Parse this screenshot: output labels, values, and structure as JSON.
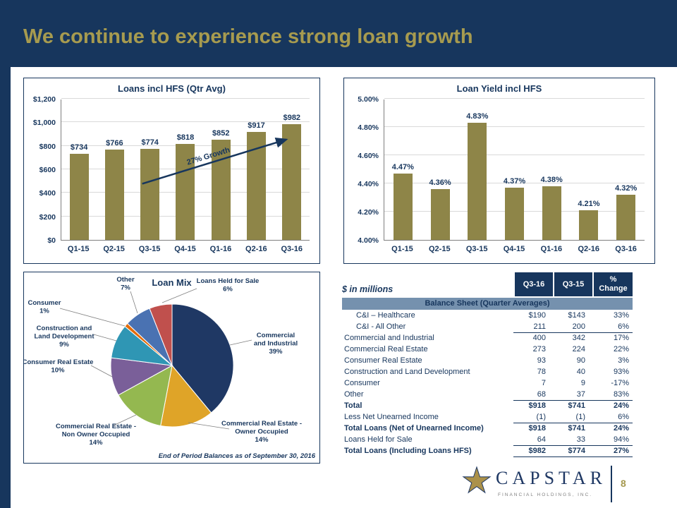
{
  "slide": {
    "title": "We continue to experience strong loan growth",
    "page_number": "8"
  },
  "logo": {
    "name": "CAPSTAR",
    "subtitle": "FINANCIAL HOLDINGS, INC."
  },
  "colors": {
    "navy": "#17365d",
    "title_gold": "#a79b4f",
    "bar_olive": "#8e8548",
    "section_row_bg": "#7591ae",
    "page_number_gold": "#a5984e"
  },
  "chart_data": [
    {
      "type": "bar",
      "title": "Loans incl HFS (Qtr Avg)",
      "categories": [
        "Q1-15",
        "Q2-15",
        "Q3-15",
        "Q4-15",
        "Q1-16",
        "Q2-16",
        "Q3-16"
      ],
      "values": [
        734,
        766,
        774,
        818,
        852,
        917,
        982
      ],
      "labels": [
        "$734",
        "$766",
        "$774",
        "$818",
        "$852",
        "$917",
        "$982"
      ],
      "ylim": [
        0,
        1200
      ],
      "yticks": [
        "$0",
        "$200",
        "$400",
        "$600",
        "$800",
        "$1,000",
        "$1,200"
      ],
      "annotation": "27% Growth",
      "bar_color": "#8e8548",
      "grid": true,
      "legend": "none"
    },
    {
      "type": "bar",
      "title": "Loan Yield incl HFS",
      "categories": [
        "Q1-15",
        "Q2-15",
        "Q3-15",
        "Q4-15",
        "Q1-16",
        "Q2-16",
        "Q3-16"
      ],
      "values": [
        4.47,
        4.36,
        4.83,
        4.37,
        4.38,
        4.21,
        4.32
      ],
      "labels": [
        "4.47%",
        "4.36%",
        "4.83%",
        "4.37%",
        "4.38%",
        "4.21%",
        "4.32%"
      ],
      "ylim": [
        4.0,
        5.0
      ],
      "yticks": [
        "4.00%",
        "4.20%",
        "4.40%",
        "4.60%",
        "4.80%",
        "5.00%"
      ],
      "bar_color": "#8e8548",
      "grid": true,
      "legend": "none"
    },
    {
      "type": "pie",
      "title": "Loan Mix",
      "footnote": "End of Period Balances as of  September 30, 2016",
      "slices": [
        {
          "name": "Commercial and Industrial",
          "pct": 39,
          "pct_label": "39%",
          "color": "#1f3864",
          "label_lines": [
            "Commercial",
            "and Industrial"
          ]
        },
        {
          "name": "Commercial Real Estate - Owner Occupied",
          "pct": 14,
          "pct_label": "14%",
          "color": "#dfa428",
          "label_lines": [
            "Commercial Real Estate -",
            "Owner Occupied"
          ]
        },
        {
          "name": "Commercial Real Estate - Non Owner Occupied",
          "pct": 14,
          "pct_label": "14%",
          "color": "#94b850",
          "label_lines": [
            "Commercial Real Estate -",
            "Non Owner Occupied"
          ]
        },
        {
          "name": "Consumer Real Estate",
          "pct": 10,
          "pct_label": "10%",
          "color": "#7a5f99",
          "label_lines": [
            "Consumer Real Estate"
          ]
        },
        {
          "name": "Construction and Land Development",
          "pct": 9,
          "pct_label": "9%",
          "color": "#2f96b4",
          "label_lines": [
            "Construction and",
            "Land Development"
          ]
        },
        {
          "name": "Consumer",
          "pct": 1,
          "pct_label": "1%",
          "color": "#e36c0a",
          "label_lines": [
            "Consumer"
          ]
        },
        {
          "name": "Other",
          "pct": 7,
          "pct_label": "7%",
          "color": "#4a72b2",
          "label_lines": [
            "Other"
          ]
        },
        {
          "name": "Loans Held for Sale",
          "pct": 6,
          "pct_label": "6%",
          "color": "#c0504d",
          "label_lines": [
            "Loans Held for Sale"
          ]
        }
      ]
    },
    {
      "type": "table",
      "unit_label": "$ in millions",
      "columns": [
        "Q3-16",
        "Q3-15",
        "%\nChange"
      ],
      "section_header": "Balance Sheet (Quarter Averages)",
      "rows": [
        {
          "label": "C&I – Healthcare",
          "values": [
            "$190",
            "$143",
            "33%"
          ],
          "indent": true
        },
        {
          "label": "C&I - All Other",
          "values": [
            "211",
            "200",
            "6%"
          ],
          "indent": true,
          "rule_below": true
        },
        {
          "label": "Commercial and Industrial",
          "values": [
            "400",
            "342",
            "17%"
          ]
        },
        {
          "label": "Commercial Real Estate",
          "values": [
            "273",
            "224",
            "22%"
          ]
        },
        {
          "label": "Consumer Real Estate",
          "values": [
            "93",
            "90",
            "3%"
          ]
        },
        {
          "label": "Construction and Land Development",
          "values": [
            "78",
            "40",
            "93%"
          ]
        },
        {
          "label": "Consumer",
          "values": [
            "7",
            "9",
            "-17%"
          ]
        },
        {
          "label": "Other",
          "values": [
            "68",
            "37",
            "83%"
          ],
          "rule_below": true
        },
        {
          "label": "Total",
          "values": [
            "$918",
            "$741",
            "24%"
          ],
          "bold": true
        },
        {
          "label": "Less Net Unearned Income",
          "values": [
            "(1)",
            "(1)",
            "6%"
          ],
          "rule_below": true
        },
        {
          "label": "Total Loans (Net of Unearned Income)",
          "values": [
            "$918",
            "$741",
            "24%"
          ],
          "bold": true
        },
        {
          "label": "Loans Held for Sale",
          "values": [
            "64",
            "33",
            "94%"
          ],
          "rule_below": true
        },
        {
          "label": "Total Loans (Including Loans HFS)",
          "values": [
            "$982",
            "$774",
            "27%"
          ],
          "bold": true,
          "rule_below": true
        }
      ]
    }
  ]
}
